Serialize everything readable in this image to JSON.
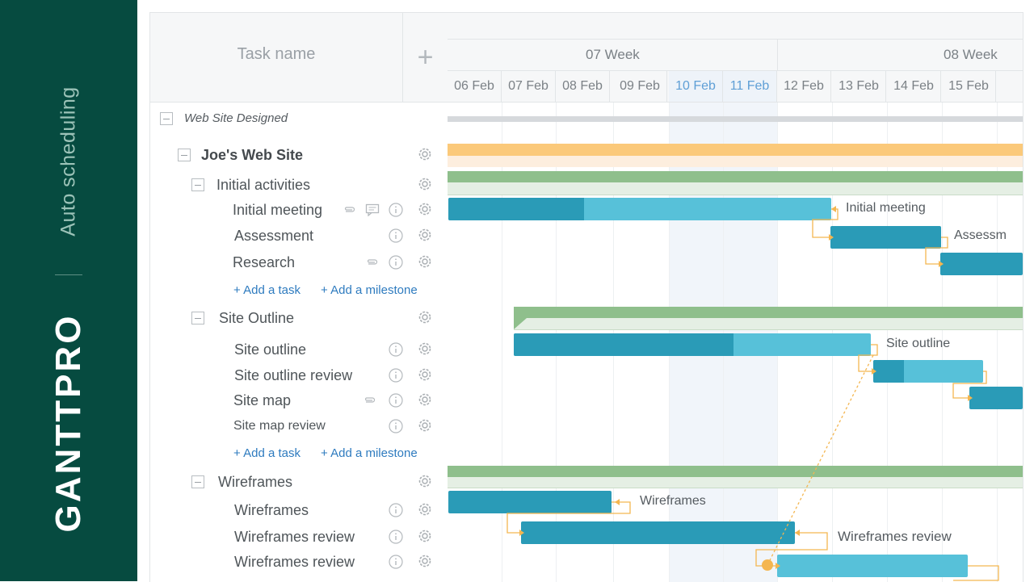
{
  "brand": {
    "tagline": "Auto scheduling",
    "logo_text": "GANTTPRO",
    "bg_color": "#064b40"
  },
  "grid": {
    "header_task_name": "Task name",
    "add_column_symbol": "+"
  },
  "timeline": {
    "weeks": [
      {
        "label": "07 Week"
      },
      {
        "label": "08 Week"
      }
    ],
    "days": [
      "06 Feb",
      "07 Feb",
      "08 Feb",
      "09 Feb",
      "10 Feb",
      "11 Feb",
      "12 Feb",
      "13 Feb",
      "14 Feb",
      "15 Feb"
    ],
    "weekend_days": [
      "10 Feb",
      "11 Feb"
    ]
  },
  "tasks": {
    "project": "Web Site Designed",
    "site": "Joe's Web Site",
    "group1": "Initial activities",
    "t_initial_meeting": "Initial meeting",
    "t_assessment": "Assessment",
    "t_research": "Research",
    "group2": "Site Outline",
    "t_site_outline": "Site outline",
    "t_site_outline_review": "Site outline review",
    "t_site_map": "Site map",
    "t_site_map_review": "Site map review",
    "group3": "Wireframes",
    "t_wireframes": "Wireframes",
    "t_wireframes_review_1": "Wireframes review",
    "t_wireframes_review_2": "Wireframes review"
  },
  "actions": {
    "add_task": "+ Add a task",
    "add_milestone": "+ Add a milestone"
  },
  "bar_labels": {
    "initial_meeting": "Initial meeting",
    "assessment": "Assessm",
    "site_outline": "Site outline",
    "wireframes": "Wireframes",
    "wireframes_review": "Wireframes review"
  },
  "colors": {
    "bar_dark": "#2a9bb7",
    "bar_light": "#57c1d9",
    "summary_orange": "#fbc97a",
    "summary_green": "#8fbf8c",
    "link_orange": "#f4b650",
    "link_blue": "#2e7bbf"
  },
  "icons": [
    "gear-icon",
    "info-icon",
    "paperclip-icon",
    "comment-icon",
    "collapse-icon",
    "plus-icon"
  ]
}
